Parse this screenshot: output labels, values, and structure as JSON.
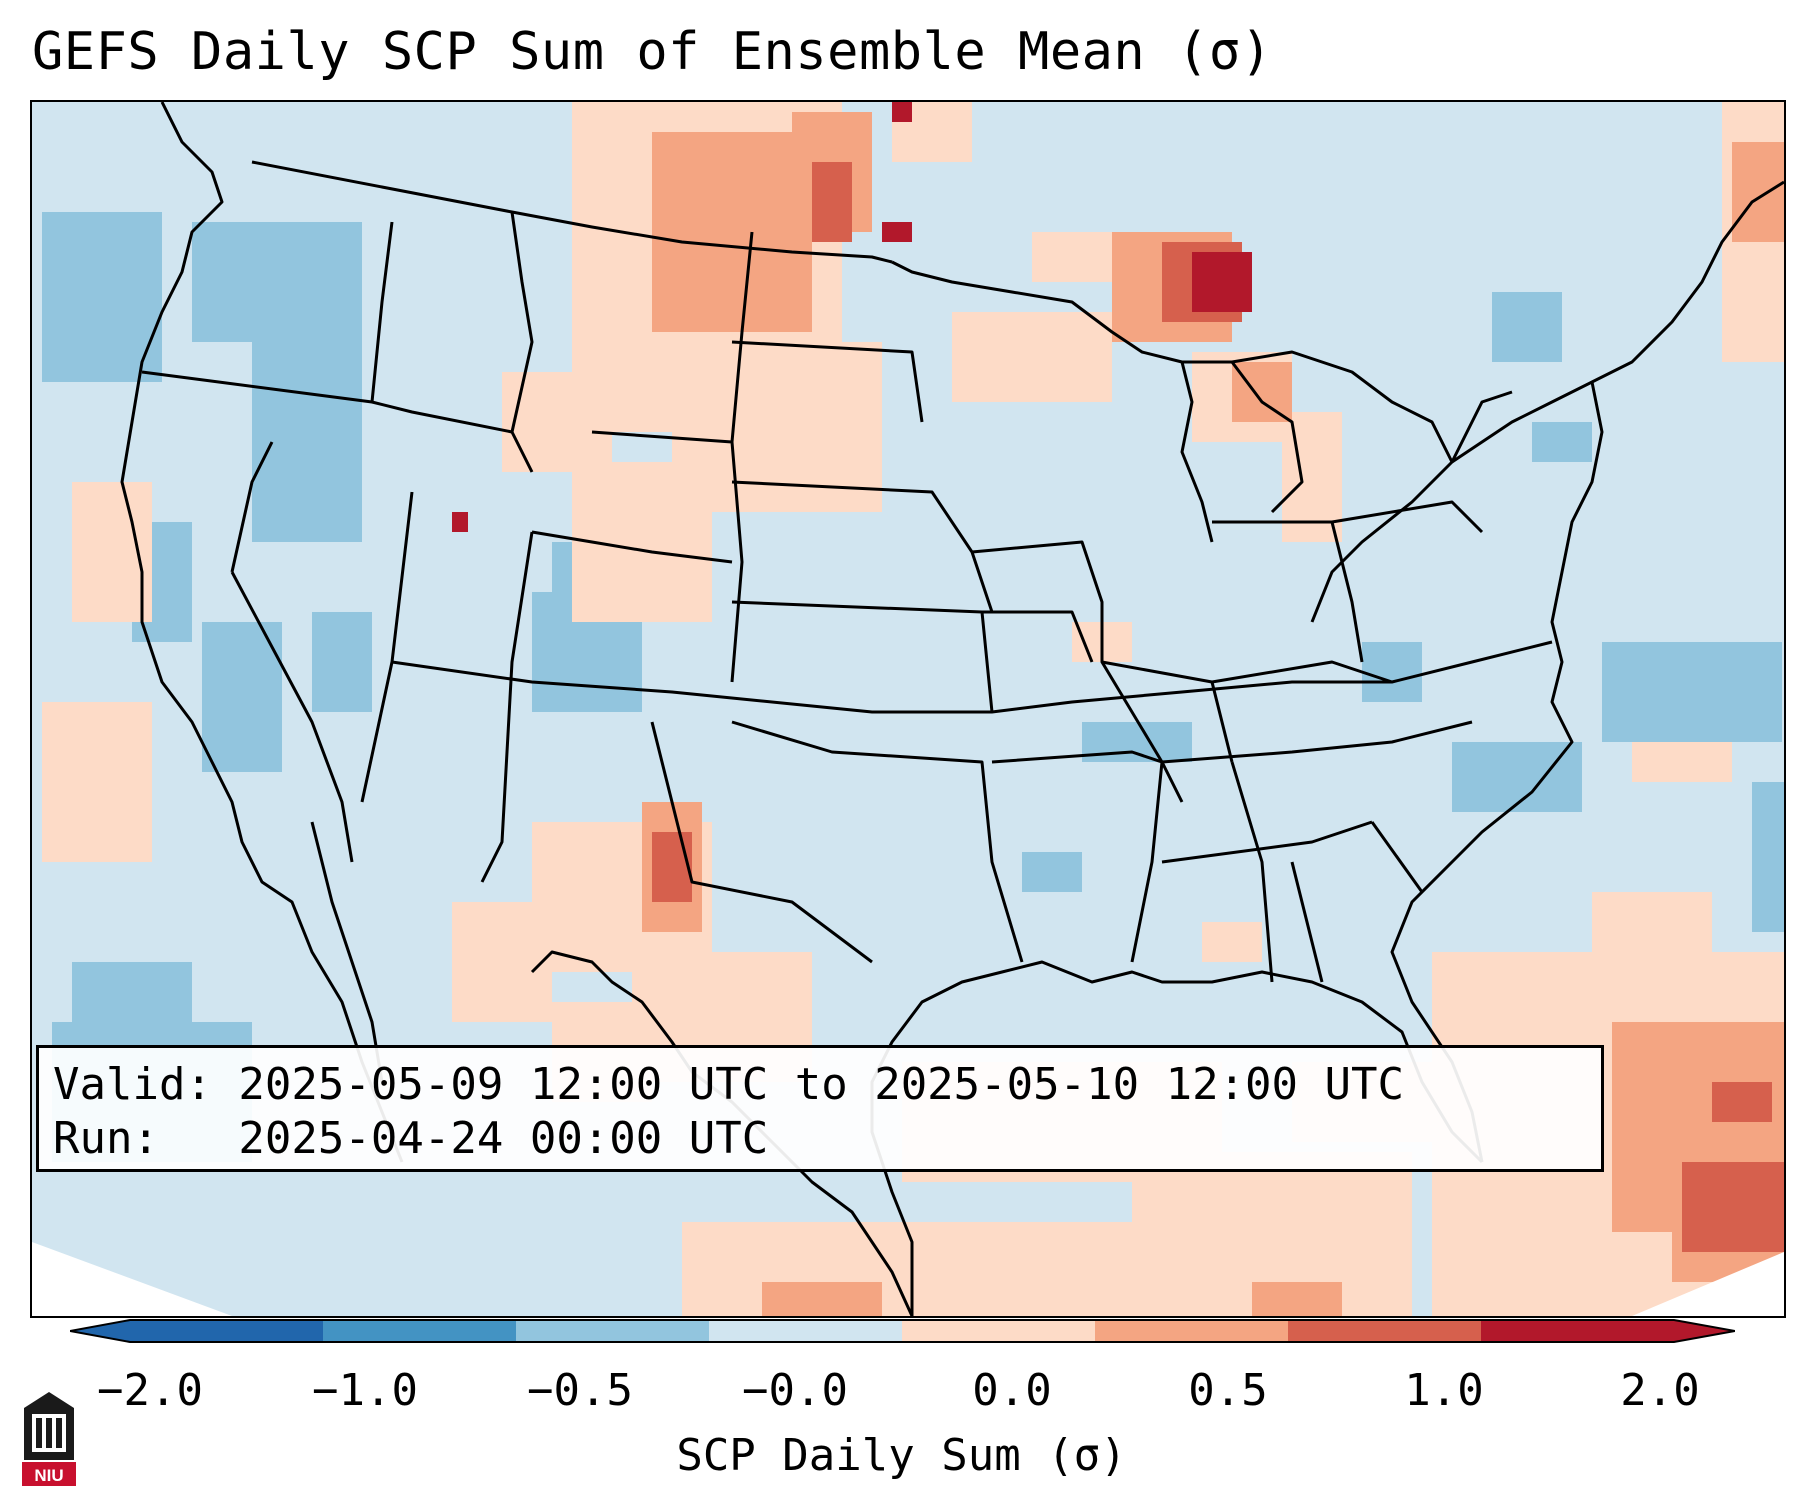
{
  "title": "GEFS Daily SCP Sum of Ensemble Mean (σ)",
  "info": {
    "valid_line": "Valid: 2025-05-09 12:00 UTC to 2025-05-10 12:00 UTC",
    "run_line": "Run:   2025-04-24 00:00 UTC"
  },
  "colorbar": {
    "label": "SCP Daily Sum (σ)",
    "ticks": [
      "−2.0",
      "−1.0",
      "−0.5",
      "−0.0",
      "0.0",
      "0.5",
      "1.0",
      "2.0"
    ],
    "bin_colors": [
      "#2166ac",
      "#4393c3",
      "#92c5de",
      "#d1e5f0",
      "#fddbc7",
      "#f4a582",
      "#d6604d",
      "#b2182b"
    ]
  },
  "logo": {
    "text": "NIU",
    "color": "#c8102e"
  }
}
